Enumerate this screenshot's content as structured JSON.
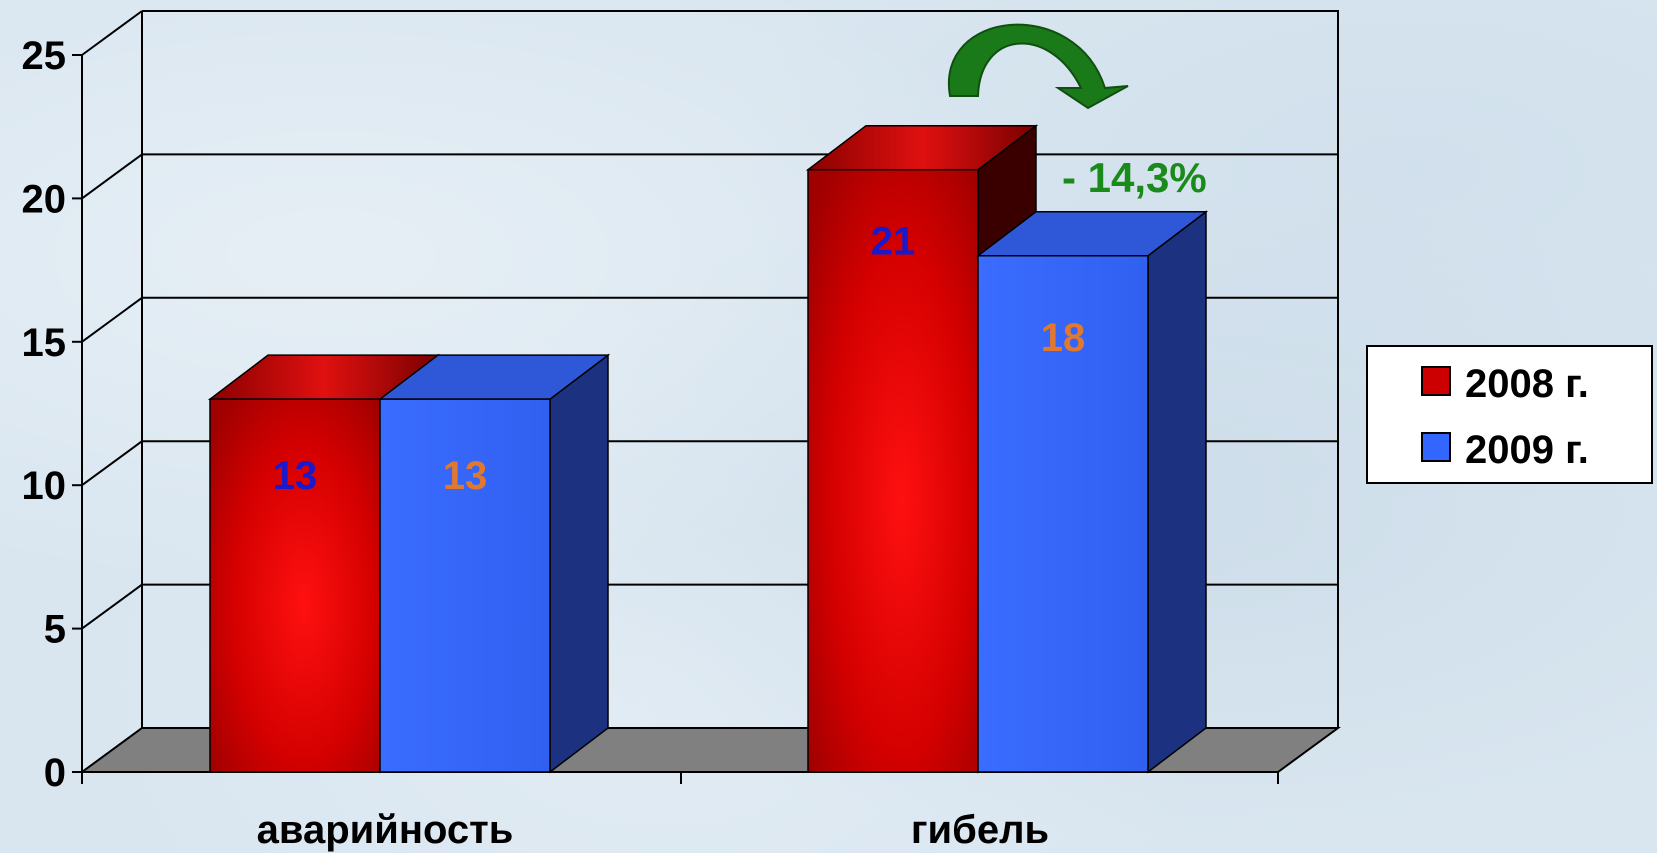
{
  "chart_data": {
    "type": "bar",
    "categories": [
      "аварийность",
      "гибель"
    ],
    "series": [
      {
        "name": "2008 г.",
        "values": [
          13,
          21
        ],
        "color": "#cc0000",
        "label_color": "#1a1acc"
      },
      {
        "name": "2009 г.",
        "values": [
          13,
          18
        ],
        "color": "#3366ff",
        "label_color": "#e07830"
      }
    ],
    "ylim": [
      0,
      25
    ],
    "yticks": [
      "0",
      "5",
      "10",
      "15",
      "20",
      "25"
    ],
    "data_labels": [
      [
        "13",
        "21"
      ],
      [
        "13",
        "18"
      ]
    ],
    "annotation": {
      "text": "- 14,3%",
      "color": "#1a8a1a",
      "arrow_color": "#1a7a1a"
    },
    "title": "",
    "xlabel": "",
    "ylabel": "",
    "grid": true,
    "legend_position": "right",
    "three_d": true
  }
}
